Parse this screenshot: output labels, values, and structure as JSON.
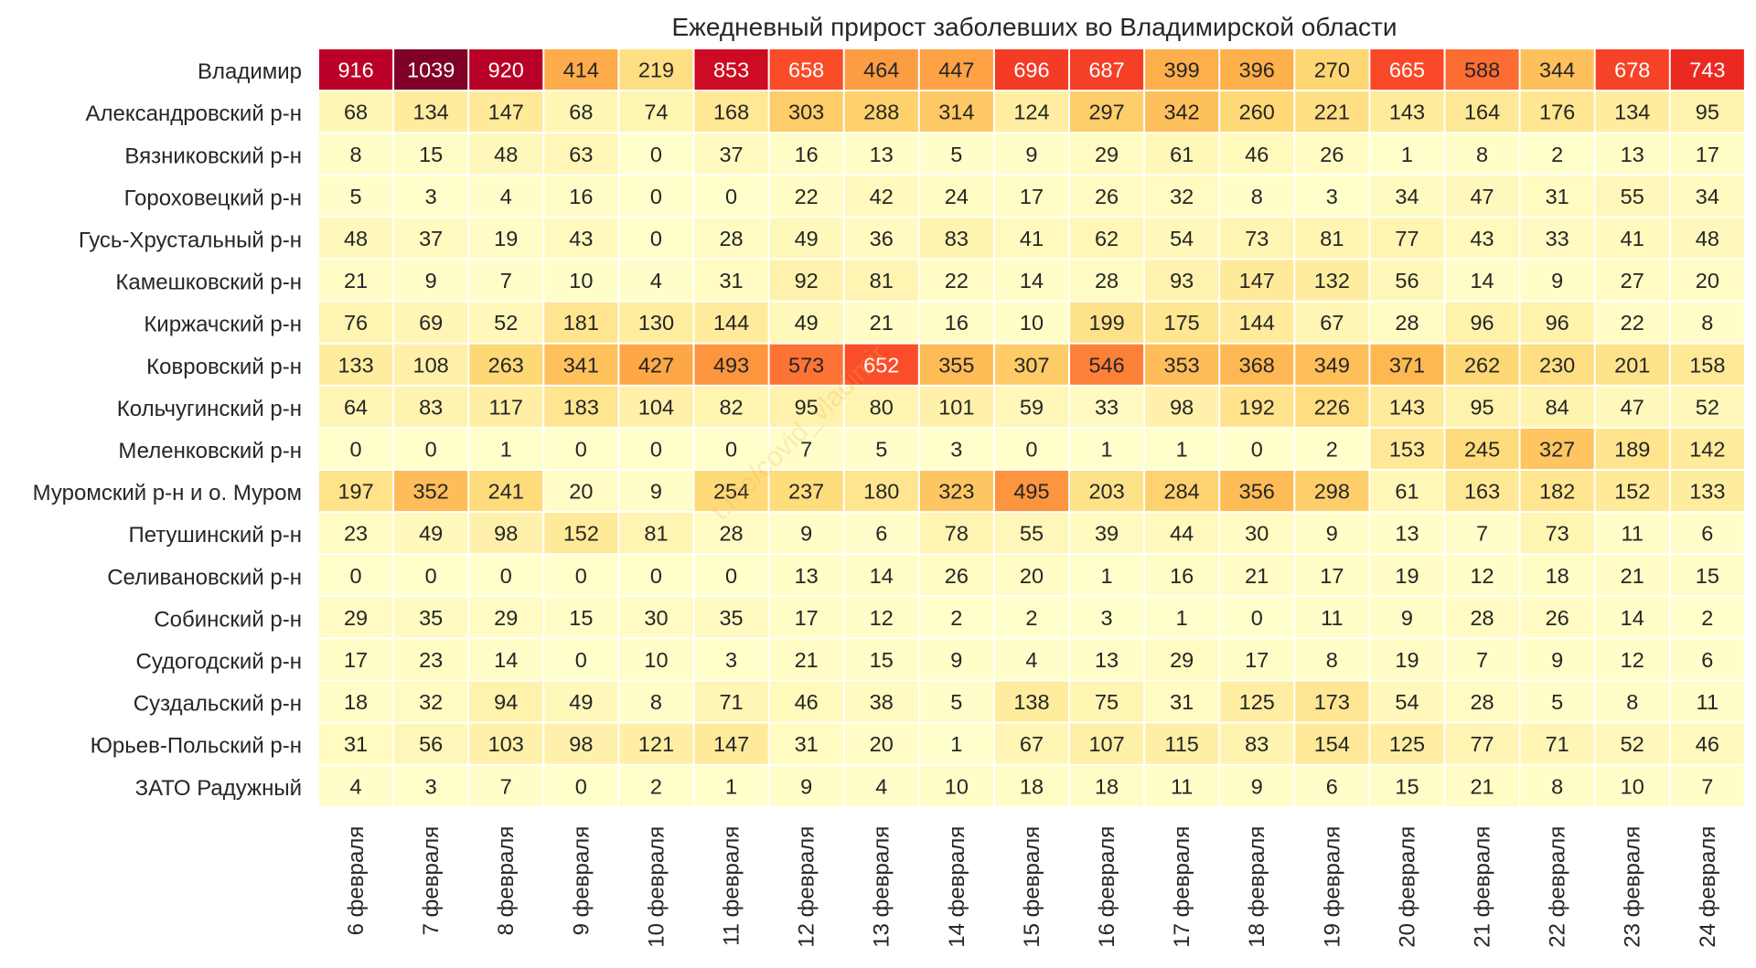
{
  "chart_data": {
    "type": "heatmap",
    "title": "Ежедневный прирост заболевших во Владимирской области",
    "watermark": "t.me/covid_vladimir",
    "colormap": "YlOrRd",
    "value_range": [
      0,
      1039
    ],
    "rows": [
      "Владимир",
      "Александровский р-н",
      "Вязниковский р-н",
      "Гороховецкий р-н",
      "Гусь-Хрустальный р-н",
      "Камешковский р-н",
      "Киржачский р-н",
      "Ковровский р-н",
      "Кольчугинский р-н",
      "Меленковский р-н",
      "Муромский р-н и о. Муром",
      "Петушинский р-н",
      "Селивановский р-н",
      "Собинский р-н",
      "Судогодский р-н",
      "Суздальский р-н",
      "Юрьев-Польский р-н",
      "ЗАТО Радужный"
    ],
    "columns": [
      "6 февраля",
      "7 февраля",
      "8 февраля",
      "9 февраля",
      "10 февраля",
      "11 февраля",
      "12 февраля",
      "13 февраля",
      "14 февраля",
      "15 февраля",
      "16 февраля",
      "17 февраля",
      "18 февраля",
      "19 февраля",
      "20 февраля",
      "21 февраля",
      "22 февраля",
      "23 февраля",
      "24 февраля"
    ],
    "values": [
      [
        916,
        1039,
        920,
        414,
        219,
        853,
        658,
        464,
        447,
        696,
        687,
        399,
        396,
        270,
        665,
        588,
        344,
        678,
        743
      ],
      [
        68,
        134,
        147,
        68,
        74,
        168,
        303,
        288,
        314,
        124,
        297,
        342,
        260,
        221,
        143,
        164,
        176,
        134,
        95
      ],
      [
        8,
        15,
        48,
        63,
        0,
        37,
        16,
        13,
        5,
        9,
        29,
        61,
        46,
        26,
        1,
        8,
        2,
        13,
        17
      ],
      [
        5,
        3,
        4,
        16,
        0,
        0,
        22,
        42,
        24,
        17,
        26,
        32,
        8,
        3,
        34,
        47,
        31,
        55,
        34
      ],
      [
        48,
        37,
        19,
        43,
        0,
        28,
        49,
        36,
        83,
        41,
        62,
        54,
        73,
        81,
        77,
        43,
        33,
        41,
        48
      ],
      [
        21,
        9,
        7,
        10,
        4,
        31,
        92,
        81,
        22,
        14,
        28,
        93,
        147,
        132,
        56,
        14,
        9,
        27,
        20
      ],
      [
        76,
        69,
        52,
        181,
        130,
        144,
        49,
        21,
        16,
        10,
        199,
        175,
        144,
        67,
        28,
        96,
        96,
        22,
        8
      ],
      [
        133,
        108,
        263,
        341,
        427,
        493,
        573,
        652,
        355,
        307,
        546,
        353,
        368,
        349,
        371,
        262,
        230,
        201,
        158
      ],
      [
        64,
        83,
        117,
        183,
        104,
        82,
        95,
        80,
        101,
        59,
        33,
        98,
        192,
        226,
        143,
        95,
        84,
        47,
        52
      ],
      [
        0,
        0,
        1,
        0,
        0,
        0,
        7,
        5,
        3,
        0,
        1,
        1,
        0,
        2,
        153,
        245,
        327,
        189,
        142
      ],
      [
        197,
        352,
        241,
        20,
        9,
        254,
        237,
        180,
        323,
        495,
        203,
        284,
        356,
        298,
        61,
        163,
        182,
        152,
        133
      ],
      [
        23,
        49,
        98,
        152,
        81,
        28,
        9,
        6,
        78,
        55,
        39,
        44,
        30,
        9,
        13,
        7,
        73,
        11,
        6
      ],
      [
        0,
        0,
        0,
        0,
        0,
        0,
        13,
        14,
        26,
        20,
        1,
        16,
        21,
        17,
        19,
        12,
        18,
        21,
        15
      ],
      [
        29,
        35,
        29,
        15,
        30,
        35,
        17,
        12,
        2,
        2,
        3,
        1,
        0,
        11,
        9,
        28,
        26,
        14,
        2
      ],
      [
        17,
        23,
        14,
        0,
        10,
        3,
        21,
        15,
        9,
        4,
        13,
        29,
        17,
        8,
        19,
        7,
        9,
        12,
        6
      ],
      [
        18,
        32,
        94,
        49,
        8,
        71,
        46,
        38,
        5,
        138,
        75,
        31,
        125,
        173,
        54,
        28,
        5,
        8,
        11
      ],
      [
        31,
        56,
        103,
        98,
        121,
        147,
        31,
        20,
        1,
        67,
        107,
        115,
        83,
        154,
        125,
        77,
        71,
        52,
        46
      ],
      [
        4,
        3,
        7,
        0,
        2,
        1,
        9,
        4,
        10,
        18,
        18,
        11,
        9,
        6,
        15,
        21,
        8,
        10,
        7
      ]
    ]
  }
}
